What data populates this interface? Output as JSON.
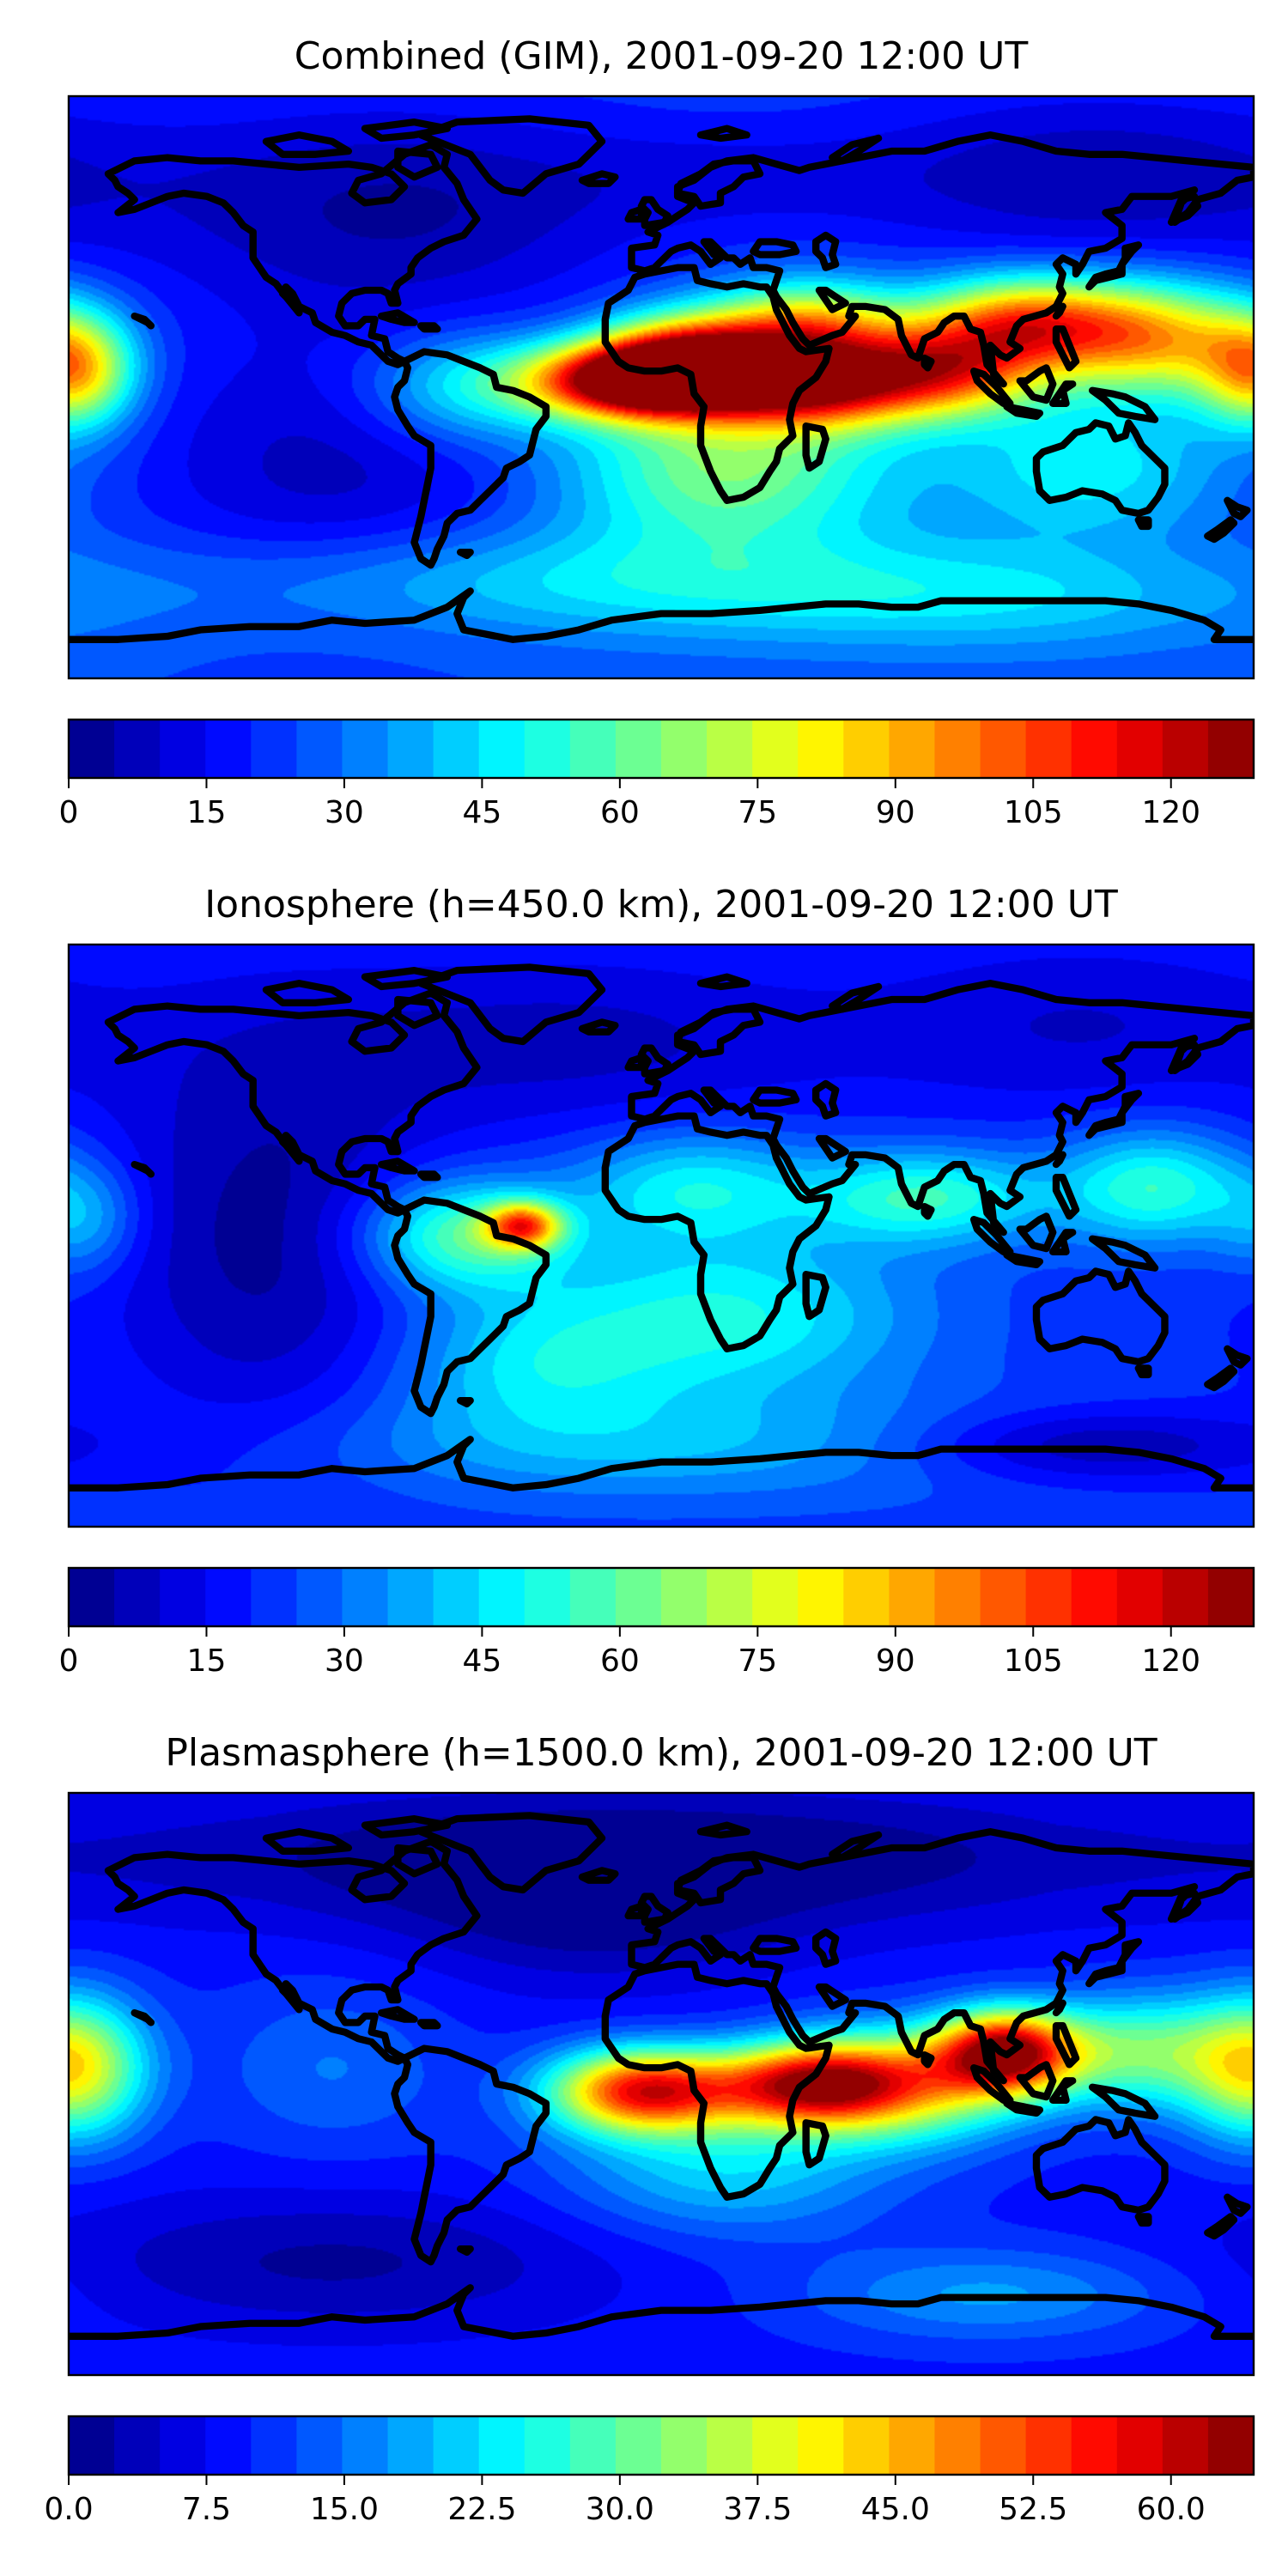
{
  "figure": {
    "panels": [
      {
        "id": "combined",
        "title": "Combined (GIM), 2001-09-20 12:00 UT",
        "colorbar": {
          "min": 0,
          "max": 129,
          "levels": 26,
          "ticks": [
            0,
            15,
            30,
            45,
            60,
            75,
            90,
            105,
            120
          ],
          "tick_labels": [
            "0",
            "15",
            "30",
            "45",
            "60",
            "75",
            "90",
            "105",
            "120"
          ]
        },
        "background_value": 25,
        "blobs": [
          {
            "lon": -80,
            "lat": 55,
            "value": 5,
            "sx": 55,
            "sy": 25
          },
          {
            "lon": -100,
            "lat": -25,
            "value": 8,
            "sx": 45,
            "sy": 30
          },
          {
            "lon": 130,
            "lat": 65,
            "value": 6,
            "sx": 55,
            "sy": 20
          },
          {
            "lon": 20,
            "lat": 65,
            "value": 18,
            "sx": 40,
            "sy": 12
          },
          {
            "lon": -175,
            "lat": 5,
            "value": 60,
            "sx": 12,
            "sy": 12
          },
          {
            "lon": 178,
            "lat": 5,
            "value": 55,
            "sx": 12,
            "sy": 12
          },
          {
            "lon": -60,
            "lat": 0,
            "value": 52,
            "sx": 22,
            "sy": 12
          },
          {
            "lon": -10,
            "lat": 2,
            "value": 125,
            "sx": 22,
            "sy": 8
          },
          {
            "lon": 10,
            "lat": 8,
            "value": 115,
            "sx": 20,
            "sy": 10
          },
          {
            "lon": 45,
            "lat": 0,
            "value": 100,
            "sx": 22,
            "sy": 9
          },
          {
            "lon": 45,
            "lat": 18,
            "value": 85,
            "sx": 20,
            "sy": 10
          },
          {
            "lon": 85,
            "lat": 5,
            "value": 95,
            "sx": 22,
            "sy": 10
          },
          {
            "lon": 110,
            "lat": 20,
            "value": 95,
            "sx": 22,
            "sy": 10
          },
          {
            "lon": 150,
            "lat": 15,
            "value": 85,
            "sx": 22,
            "sy": 12
          },
          {
            "lon": 20,
            "lat": -25,
            "value": 65,
            "sx": 35,
            "sy": 18
          },
          {
            "lon": 130,
            "lat": -25,
            "value": 48,
            "sx": 30,
            "sy": 15
          },
          {
            "lon": -30,
            "lat": -60,
            "value": 45,
            "sx": 80,
            "sy": 12
          },
          {
            "lon": 100,
            "lat": -65,
            "value": 42,
            "sx": 60,
            "sy": 12
          }
        ]
      },
      {
        "id": "ionosphere",
        "title": "Ionosphere  (h=450.0 km), 2001-09-20 12:00 UT",
        "colorbar": {
          "min": 0,
          "max": 129,
          "levels": 26,
          "ticks": [
            0,
            15,
            30,
            45,
            60,
            75,
            90,
            105,
            120
          ],
          "tick_labels": [
            "0",
            "15",
            "30",
            "45",
            "60",
            "75",
            "90",
            "105",
            "120"
          ]
        },
        "background_value": 22,
        "blobs": [
          {
            "lon": -120,
            "lat": 0,
            "value": 3,
            "sx": 35,
            "sy": 45
          },
          {
            "lon": -30,
            "lat": 60,
            "value": 8,
            "sx": 60,
            "sy": 20
          },
          {
            "lon": 130,
            "lat": 65,
            "value": 10,
            "sx": 50,
            "sy": 20
          },
          {
            "lon": -60,
            "lat": 0,
            "value": 62,
            "sx": 22,
            "sy": 12
          },
          {
            "lon": -42,
            "lat": 3,
            "value": 85,
            "sx": 8,
            "sy": 5
          },
          {
            "lon": 10,
            "lat": 15,
            "value": 48,
            "sx": 25,
            "sy": 12
          },
          {
            "lon": 80,
            "lat": 12,
            "value": 55,
            "sx": 25,
            "sy": 10
          },
          {
            "lon": 150,
            "lat": 15,
            "value": 55,
            "sx": 20,
            "sy": 12
          },
          {
            "lon": -175,
            "lat": 5,
            "value": 40,
            "sx": 12,
            "sy": 12
          },
          {
            "lon": 20,
            "lat": -25,
            "value": 50,
            "sx": 40,
            "sy": 18
          },
          {
            "lon": -40,
            "lat": -40,
            "value": 42,
            "sx": 30,
            "sy": 15
          },
          {
            "lon": 130,
            "lat": -65,
            "value": 3,
            "sx": 40,
            "sy": 8
          },
          {
            "lon": 0,
            "lat": -65,
            "value": 38,
            "sx": 80,
            "sy": 12
          }
        ]
      },
      {
        "id": "plasmasphere",
        "title": "Plasmasphere (h=1500.0 km), 2001-09-20 12:00 UT",
        "colorbar": {
          "min": 0,
          "max": 64.5,
          "levels": 26,
          "ticks": [
            0,
            7.5,
            15,
            22.5,
            30,
            37.5,
            45,
            52.5,
            60
          ],
          "tick_labels": [
            "0.0",
            "7.5",
            "15.0",
            "22.5",
            "30.0",
            "37.5",
            "45.0",
            "52.5",
            "60.0"
          ]
        },
        "background_value": 9,
        "blobs": [
          {
            "lon": -60,
            "lat": 70,
            "value": 2,
            "sx": 80,
            "sy": 15
          },
          {
            "lon": 60,
            "lat": 70,
            "value": 3,
            "sx": 80,
            "sy": 15
          },
          {
            "lon": -100,
            "lat": -55,
            "value": 2,
            "sx": 60,
            "sy": 15
          },
          {
            "lon": -175,
            "lat": 5,
            "value": 25,
            "sx": 15,
            "sy": 15
          },
          {
            "lon": 178,
            "lat": 5,
            "value": 25,
            "sx": 15,
            "sy": 15
          },
          {
            "lon": -100,
            "lat": 5,
            "value": 15,
            "sx": 25,
            "sy": 18
          },
          {
            "lon": -5,
            "lat": -2,
            "value": 55,
            "sx": 20,
            "sy": 9
          },
          {
            "lon": 45,
            "lat": 0,
            "value": 50,
            "sx": 20,
            "sy": 9
          },
          {
            "lon": 105,
            "lat": 10,
            "value": 58,
            "sx": 15,
            "sy": 9
          },
          {
            "lon": 75,
            "lat": 0,
            "value": 38,
            "sx": 25,
            "sy": 12
          },
          {
            "lon": 145,
            "lat": 10,
            "value": 30,
            "sx": 20,
            "sy": 12
          },
          {
            "lon": 20,
            "lat": -25,
            "value": 22,
            "sx": 35,
            "sy": 15
          },
          {
            "lon": 100,
            "lat": -65,
            "value": 18,
            "sx": 40,
            "sy": 10
          },
          {
            "lon": -20,
            "lat": 50,
            "value": 3,
            "sx": 40,
            "sy": 15
          }
        ]
      }
    ],
    "colormap": "jet",
    "map_extent": {
      "lon": [
        -180,
        180
      ],
      "lat": [
        -90,
        90
      ]
    }
  }
}
